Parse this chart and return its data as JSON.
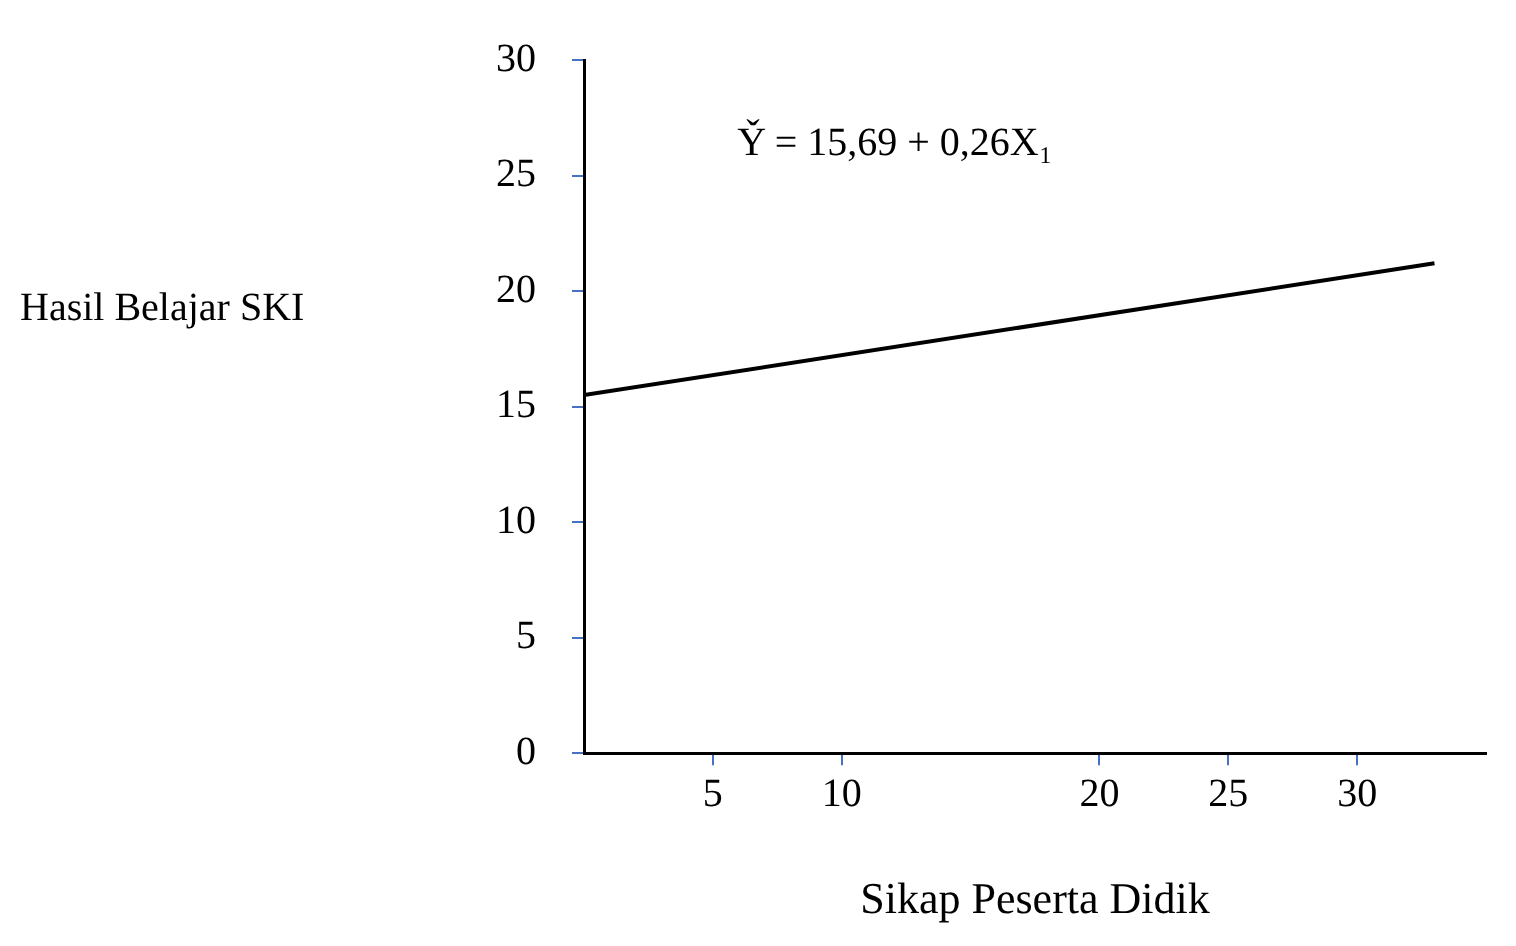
{
  "chart_data": {
    "type": "line",
    "xlabel": "Sikap Peserta Didik",
    "ylabel": "Hasil Belajar SKI",
    "annotations": [
      "Y̌ = 15,69 + 0,26X₁"
    ],
    "series": [
      {
        "color": "#000000",
        "x": [
          0,
          33
        ],
        "values": [
          15.5,
          21.2
        ]
      }
    ],
    "xlim": [
      0,
      35
    ],
    "xticks": [
      5,
      10,
      20,
      25,
      30
    ],
    "ylim": [
      0,
      30
    ],
    "yticks": [
      0,
      5,
      10,
      15,
      20,
      25,
      30
    ],
    "grid": false,
    "legend": false,
    "marker": "none",
    "line_style": "solid"
  }
}
